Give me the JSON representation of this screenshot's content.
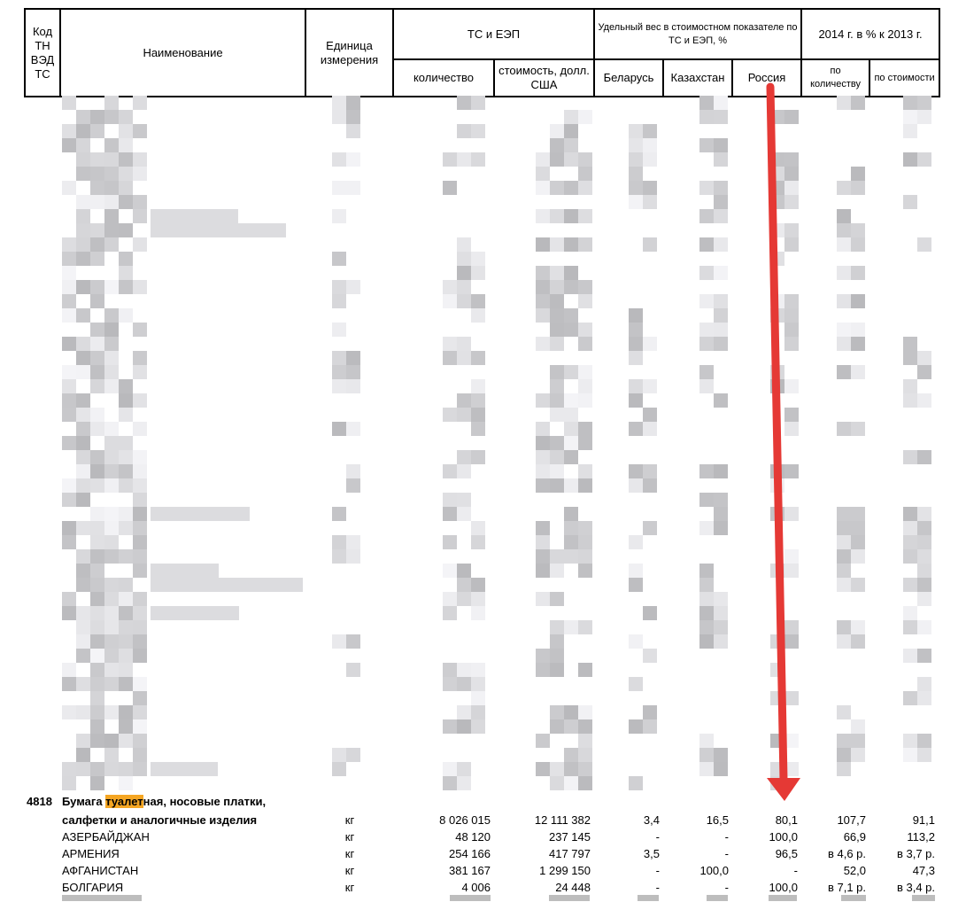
{
  "header": {
    "code": "Код ТН ВЭД ТС",
    "name": "Наименование",
    "unit": "Единица измерения",
    "ts_eep": "ТС и ЕЭП",
    "share": "Удельный вес в стоимостном показателе по ТС и ЕЭП, %",
    "pct": "2014 г. в % к 2013 г.",
    "qty": "количество",
    "value": "стоимость, долл. США",
    "belarus": "Беларусь",
    "kazakhstan": "Казахстан",
    "russia": "Россия",
    "by_qty": "по количеству",
    "by_value": "по стоимости"
  },
  "group": {
    "code": "4818",
    "title_pre": "Бумага ",
    "title_hl": "туалет",
    "title_post": "ная, носовые платки,",
    "title_line2": "салфетки и аналогичные изделия",
    "unit": "кг",
    "qty": "8 026 015",
    "value": "12 111 382",
    "belarus": "3,4",
    "kazakhstan": "16,5",
    "russia": "80,1",
    "pct_qty": "107,7",
    "pct_value": "91,1"
  },
  "rows": [
    {
      "name": "АЗЕРБАЙДЖАН",
      "unit": "кг",
      "qty": "48 120",
      "value": "237 145",
      "belarus": "-",
      "kazakhstan": "-",
      "russia": "100,0",
      "pct_qty": "66,9",
      "pct_value": "113,2"
    },
    {
      "name": "АРМЕНИЯ",
      "unit": "кг",
      "qty": "254 166",
      "value": "417 797",
      "belarus": "3,5",
      "kazakhstan": "-",
      "russia": "96,5",
      "pct_qty": "в 4,6 р.",
      "pct_value": "в 3,7 р."
    },
    {
      "name": "АФГАНИСТАН",
      "unit": "кг",
      "qty": "381 167",
      "value": "1 299 150",
      "belarus": "-",
      "kazakhstan": "100,0",
      "russia": "-",
      "pct_qty": "52,0",
      "pct_value": "47,3"
    },
    {
      "name": "БОЛГАРИЯ",
      "unit": "кг",
      "qty": "4 006",
      "value": "24 448",
      "belarus": "-",
      "kazakhstan": "-",
      "russia": "100,0",
      "pct_qty": "в 7,1 р.",
      "pct_value": "в 3,4 р."
    }
  ],
  "colors": {
    "arrow": "#e53935",
    "highlight": "#f5a623",
    "blur": "#c9c9cc"
  },
  "icons": {
    "arrow": "red-down-arrow-annotation"
  }
}
